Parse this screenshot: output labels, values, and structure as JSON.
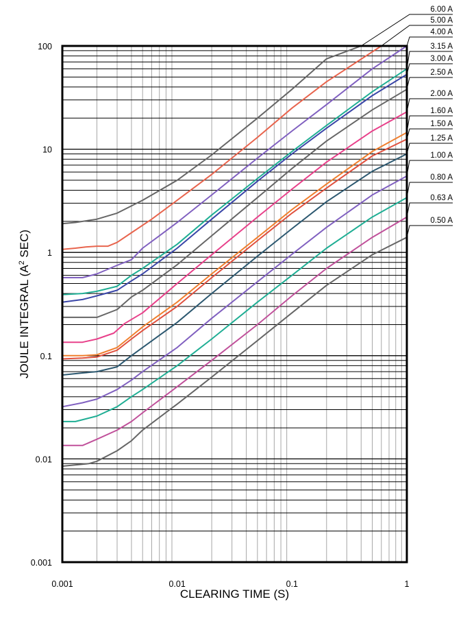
{
  "chart_data": {
    "type": "line",
    "title": "",
    "xlabel": "CLEARING TIME (S)",
    "ylabel": "JOULE INTEGRAL (A² SEC)",
    "ylabel_main": "JOULE INTEGRAL (A",
    "ylabel_sup": "2",
    "ylabel_tail": " SEC)",
    "x_scale": "log",
    "y_scale": "log",
    "xlim": [
      0.001,
      1
    ],
    "ylim": [
      0.001,
      100
    ],
    "x_ticks": [
      "0.001",
      "0.01",
      "0.1",
      "1"
    ],
    "y_ticks": [
      "0.001",
      "0.01",
      "0.1",
      "1",
      "10",
      "100"
    ],
    "grid": true,
    "legend": "labels at right end of each curve",
    "series": [
      {
        "name": "6.00 A",
        "color": "#666666",
        "x": [
          0.001,
          0.0013,
          0.002,
          0.003,
          0.005,
          0.01,
          0.02,
          0.05,
          0.1,
          0.2,
          0.4
        ],
        "y": [
          1.9,
          1.95,
          2.1,
          2.4,
          3.2,
          5.0,
          8.8,
          20,
          38,
          75,
          100
        ]
      },
      {
        "name": "5.00 A",
        "color": "#e8644d",
        "x": [
          0.001,
          0.0013,
          0.0016,
          0.002,
          0.0025,
          0.003,
          0.004,
          0.006,
          0.01,
          0.02,
          0.05,
          0.1,
          0.2,
          0.6
        ],
        "y": [
          1.07,
          1.1,
          1.13,
          1.15,
          1.15,
          1.25,
          1.55,
          2.1,
          3.2,
          5.7,
          13,
          25,
          45,
          100
        ]
      },
      {
        "name": "4.00 A",
        "color": "#8060c0",
        "x": [
          0.001,
          0.0015,
          0.002,
          0.003,
          0.004,
          0.005,
          0.007,
          0.01,
          0.02,
          0.05,
          0.1,
          0.2,
          0.5,
          1
        ],
        "y": [
          0.57,
          0.57,
          0.62,
          0.75,
          0.85,
          1.1,
          1.45,
          1.95,
          3.6,
          8.2,
          15,
          27,
          60,
          100
        ]
      },
      {
        "name": "3.15 A",
        "color": "#1fae94",
        "x": [
          0.001,
          0.0015,
          0.002,
          0.003,
          0.004,
          0.005,
          0.01,
          0.02,
          0.05,
          0.1,
          0.2,
          0.5,
          1
        ],
        "y": [
          0.39,
          0.4,
          0.42,
          0.47,
          0.6,
          0.7,
          1.2,
          2.3,
          5.2,
          9.5,
          17,
          36,
          60
        ]
      },
      {
        "name": "3.00 A",
        "color": "#3a46a8",
        "x": [
          0.001,
          0.0015,
          0.002,
          0.003,
          0.004,
          0.005,
          0.01,
          0.02,
          0.05,
          0.1,
          0.2,
          0.5,
          1
        ],
        "y": [
          0.33,
          0.35,
          0.38,
          0.43,
          0.53,
          0.62,
          1.1,
          2.1,
          4.9,
          9.0,
          16,
          33,
          53
        ]
      },
      {
        "name": "2.50 A",
        "color": "#666666",
        "x": [
          0.001,
          0.0015,
          0.002,
          0.003,
          0.004,
          0.005,
          0.01,
          0.02,
          0.05,
          0.1,
          0.2,
          0.5,
          1
        ],
        "y": [
          0.235,
          0.235,
          0.235,
          0.28,
          0.37,
          0.43,
          0.76,
          1.45,
          3.4,
          6.5,
          12,
          24,
          38
        ]
      },
      {
        "name": "2.00 A",
        "color": "#e8408a",
        "x": [
          0.001,
          0.0015,
          0.002,
          0.0028,
          0.0035,
          0.005,
          0.01,
          0.02,
          0.05,
          0.1,
          0.2,
          0.5,
          1
        ],
        "y": [
          0.135,
          0.135,
          0.145,
          0.165,
          0.205,
          0.26,
          0.5,
          0.95,
          2.2,
          4.1,
          7.5,
          15,
          23
        ]
      },
      {
        "name": "1.60 A",
        "color": "#f07f2e",
        "x": [
          0.001,
          0.0015,
          0.002,
          0.003,
          0.004,
          0.005,
          0.01,
          0.02,
          0.05,
          0.1,
          0.2,
          0.5,
          1
        ],
        "y": [
          0.1,
          0.1,
          0.102,
          0.12,
          0.155,
          0.19,
          0.33,
          0.62,
          1.4,
          2.6,
          4.6,
          9.5,
          14.5
        ]
      },
      {
        "name": "1.50 A",
        "color": "#e0503e",
        "x": [
          0.001,
          0.0015,
          0.002,
          0.003,
          0.004,
          0.005,
          0.01,
          0.02,
          0.05,
          0.1,
          0.2,
          0.5,
          1
        ],
        "y": [
          0.093,
          0.095,
          0.097,
          0.113,
          0.145,
          0.175,
          0.3,
          0.57,
          1.3,
          2.4,
          4.2,
          8.6,
          12.5
        ]
      },
      {
        "name": "1.25 A",
        "color": "#2c5870",
        "x": [
          0.001,
          0.0015,
          0.002,
          0.003,
          0.004,
          0.005,
          0.01,
          0.02,
          0.05,
          0.1,
          0.2,
          0.5,
          1
        ],
        "y": [
          0.065,
          0.068,
          0.07,
          0.078,
          0.1,
          0.12,
          0.21,
          0.4,
          0.92,
          1.7,
          3.1,
          6.1,
          9.0
        ]
      },
      {
        "name": "1.00 A",
        "color": "#8060c0",
        "x": [
          0.001,
          0.0015,
          0.002,
          0.003,
          0.004,
          0.005,
          0.01,
          0.02,
          0.05,
          0.1,
          0.2,
          0.5,
          1
        ],
        "y": [
          0.032,
          0.035,
          0.038,
          0.047,
          0.058,
          0.07,
          0.12,
          0.23,
          0.52,
          0.96,
          1.75,
          3.6,
          5.5
        ]
      },
      {
        "name": "0.80 A",
        "color": "#1fae94",
        "x": [
          0.001,
          0.0013,
          0.002,
          0.003,
          0.004,
          0.005,
          0.01,
          0.02,
          0.05,
          0.1,
          0.2,
          0.5,
          1
        ],
        "y": [
          0.023,
          0.023,
          0.026,
          0.032,
          0.04,
          0.047,
          0.08,
          0.145,
          0.33,
          0.6,
          1.1,
          2.2,
          3.4
        ]
      },
      {
        "name": "0.63 A",
        "color": "#c0509a",
        "x": [
          0.001,
          0.0015,
          0.002,
          0.003,
          0.004,
          0.005,
          0.01,
          0.02,
          0.05,
          0.1,
          0.2,
          0.5,
          1
        ],
        "y": [
          0.0135,
          0.0135,
          0.0155,
          0.019,
          0.023,
          0.028,
          0.05,
          0.09,
          0.2,
          0.38,
          0.7,
          1.4,
          2.2
        ]
      },
      {
        "name": "0.50 A",
        "color": "#666666",
        "x": [
          0.001,
          0.0017,
          0.002,
          0.003,
          0.004,
          0.005,
          0.01,
          0.02,
          0.05,
          0.1,
          0.2,
          0.5,
          1
        ],
        "y": [
          0.0085,
          0.009,
          0.0095,
          0.012,
          0.015,
          0.019,
          0.034,
          0.062,
          0.14,
          0.26,
          0.48,
          0.95,
          1.4
        ]
      }
    ]
  }
}
